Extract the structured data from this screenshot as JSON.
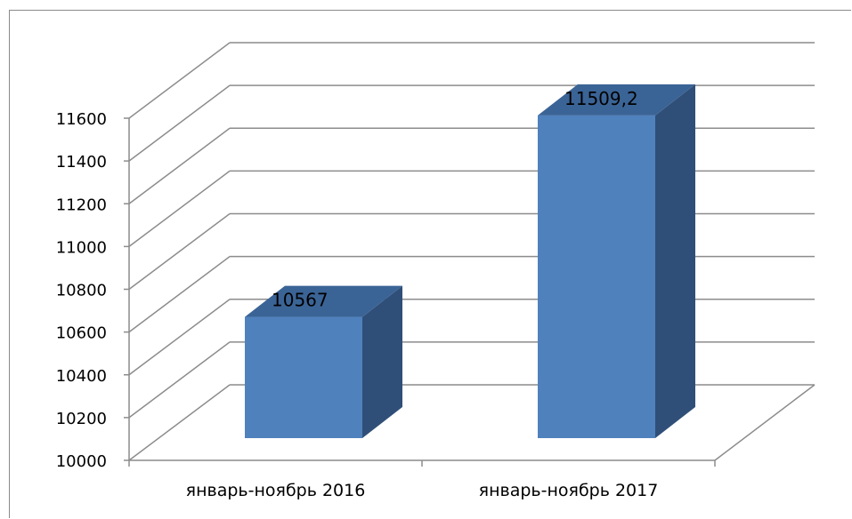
{
  "chart_data": {
    "type": "bar",
    "title": "",
    "xlabel": "",
    "ylabel": "",
    "categories": [
      "январь-ноябрь 2016",
      "январь-ноябрь 2017"
    ],
    "values": [
      10567,
      11509.2
    ],
    "data_labels": [
      "10567",
      "11509,2"
    ],
    "ylim": [
      10000,
      11600
    ],
    "y_ticks": [
      "10000",
      "10200",
      "10400",
      "10600",
      "10800",
      "11000",
      "11200",
      "11400",
      "11600"
    ],
    "grid": true,
    "legend": "none",
    "style": "3d-column",
    "colors": {
      "bar_front": "#4f81bd",
      "bar_side": "#2f4f78",
      "bar_top": "#3b6496",
      "grid": "#8c8c8c"
    }
  }
}
